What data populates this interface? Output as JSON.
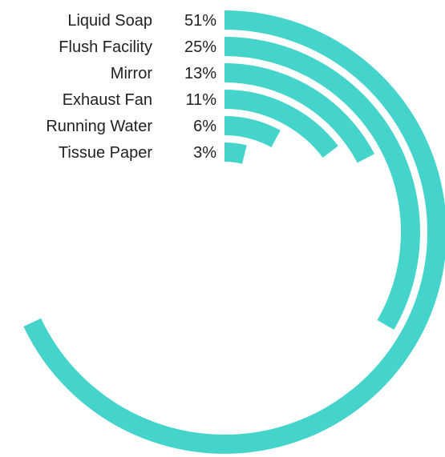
{
  "chart_data": {
    "type": "radial-bar",
    "title": "",
    "categories": [
      "Liquid Soap",
      "Flush Facility",
      "Mirror",
      "Exhaust Fan",
      "Running Water",
      "Tissue Paper"
    ],
    "values": [
      51,
      25,
      13,
      11,
      6,
      3
    ],
    "value_labels": [
      "51%",
      "25%",
      "13%",
      "11%",
      "6%",
      "3%"
    ],
    "value_unit": "%",
    "full_scale": 75,
    "legend": "none",
    "grid": false,
    "colors": {
      "bar": "#44D4CC",
      "text": "#222222",
      "background": "#ffffff"
    }
  }
}
